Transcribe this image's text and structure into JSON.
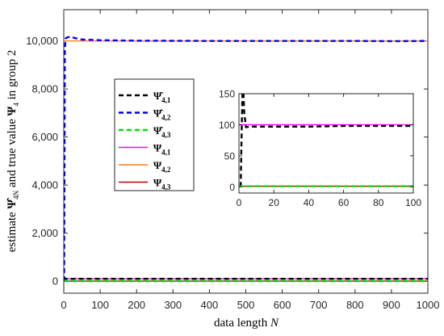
{
  "chart_data": [
    {
      "type": "line",
      "xlabel": "data length N",
      "ylabel": "estimate Ψ̂4N and true value Ψ4 in group 2",
      "xlim": [
        0,
        1000
      ],
      "ylim": [
        -500,
        11300
      ],
      "x_ticks": [
        0,
        100,
        200,
        300,
        400,
        500,
        600,
        700,
        800,
        900,
        1000
      ],
      "y_ticks": [
        0,
        2000,
        4000,
        6000,
        8000,
        10000
      ],
      "x_tick_labels": [
        "0",
        "100",
        "200",
        "300",
        "400",
        "500",
        "600",
        "700",
        "800",
        "900",
        "1000"
      ],
      "y_tick_labels": [
        "0",
        "2,000",
        "4,000",
        "6,000",
        "8,000",
        "10,000"
      ],
      "grid": false,
      "legend_position": "left",
      "series": [
        {
          "name": "Ψ̂4,1",
          "style": "dashed",
          "color": "#000000",
          "x": [
            1,
            2,
            3,
            5,
            10,
            20,
            50,
            100,
            200,
            400,
            600,
            800,
            1000
          ],
          "y": [
            100,
            150,
            120,
            97,
            97,
            97,
            98,
            98,
            99,
            99,
            100,
            100,
            100
          ]
        },
        {
          "name": "Ψ̂4,2",
          "style": "dashed",
          "color": "#0000ff",
          "x": [
            1,
            2,
            3,
            5,
            10,
            20,
            30,
            50,
            100,
            200,
            400,
            600,
            800,
            900,
            1000
          ],
          "y": [
            0,
            5000,
            9600,
            10100,
            10150,
            10180,
            10120,
            10060,
            10030,
            10010,
            10000,
            10000,
            10000,
            9990,
            10000
          ]
        },
        {
          "name": "Ψ̂4,3",
          "style": "dashed",
          "color": "#00dd00",
          "x": [
            1,
            2,
            5,
            10,
            50,
            100,
            500,
            1000
          ],
          "y": [
            0,
            1,
            1,
            1,
            1,
            1,
            1,
            1
          ]
        },
        {
          "name": "Ψ4,1",
          "style": "solid",
          "color": "#ff00ff",
          "x": [
            0,
            1000
          ],
          "y": [
            100,
            100
          ]
        },
        {
          "name": "Ψ4,2",
          "style": "solid",
          "color": "#ff7f0e",
          "x": [
            0,
            1000
          ],
          "y": [
            10000,
            10000
          ]
        },
        {
          "name": "Ψ4,3",
          "style": "solid",
          "color": "#c00000",
          "x": [
            0,
            1000
          ],
          "y": [
            1,
            1
          ]
        }
      ]
    },
    {
      "type": "line",
      "title": "",
      "xlim": [
        0,
        100
      ],
      "ylim": [
        -10,
        150
      ],
      "x_ticks": [
        0,
        20,
        40,
        60,
        80,
        100
      ],
      "y_ticks": [
        0,
        50,
        100,
        150
      ],
      "x_tick_labels": [
        "0",
        "20",
        "40",
        "60",
        "80",
        "100"
      ],
      "y_tick_labels": [
        "0",
        "50",
        "100",
        "150"
      ],
      "grid": false,
      "series": [
        {
          "name": "Ψ̂4,1",
          "style": "dashed",
          "color": "#000000",
          "x": [
            1,
            1.5,
            2,
            2.5,
            3,
            4,
            6,
            10,
            20,
            40,
            60,
            80,
            100
          ],
          "y": [
            0,
            80,
            150,
            160,
            120,
            96,
            97,
            97,
            97,
            97,
            98,
            98,
            98
          ]
        },
        {
          "name": "Ψ4,1",
          "style": "solid",
          "color": "#ff00ff",
          "x": [
            0,
            100
          ],
          "y": [
            100,
            100
          ]
        },
        {
          "name": "Ψ̂4,3",
          "style": "dashed",
          "color": "#00dd00",
          "x": [
            0,
            100
          ],
          "y": [
            1,
            1
          ]
        },
        {
          "name": "Ψ4,3",
          "style": "solid",
          "color": "#c00000",
          "x": [
            0,
            100
          ],
          "y": [
            1,
            1
          ]
        }
      ]
    }
  ]
}
